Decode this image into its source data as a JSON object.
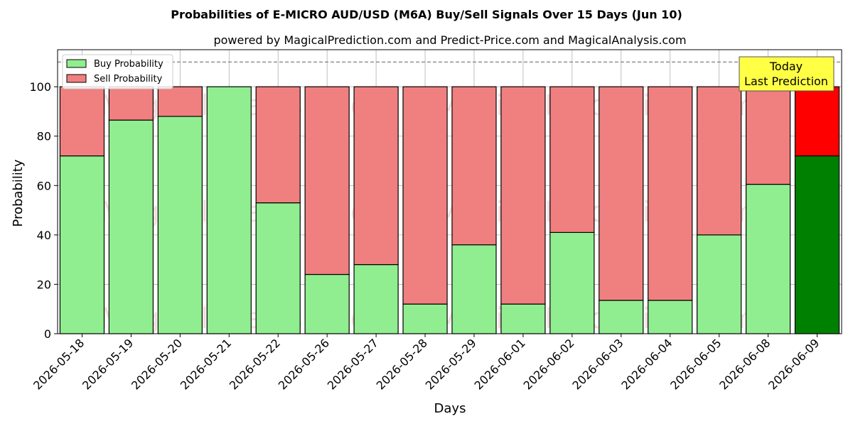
{
  "chart_data": {
    "type": "bar",
    "stacked": true,
    "title": "Probabilities of E-MICRO AUD/USD (M6A) Buy/Sell Signals Over 15 Days (Jun 10)",
    "subtitle": "powered by MagicalPrediction.com and Predict-Price.com and MagicalAnalysis.com",
    "xlabel": "Days",
    "ylabel": "Probability",
    "ylim": [
      0,
      115
    ],
    "yticks": [
      0,
      20,
      40,
      60,
      80,
      100
    ],
    "grid": true,
    "legend_placement": "top-left",
    "reference_line": {
      "y": 110,
      "style": "dashed",
      "color": "#808080"
    },
    "categories": [
      "2026-05-18",
      "2026-05-19",
      "2026-05-20",
      "2026-05-21",
      "2026-05-22",
      "2026-05-26",
      "2026-05-27",
      "2026-05-28",
      "2026-05-29",
      "2026-06-01",
      "2026-06-02",
      "2026-06-03",
      "2026-06-04",
      "2026-06-05",
      "2026-06-08",
      "2026-06-09"
    ],
    "series": [
      {
        "name": "Buy Probability",
        "color": "#90ee90",
        "values": [
          72,
          86.5,
          88,
          100,
          53,
          24,
          28,
          12,
          36,
          12,
          41,
          13.5,
          13.5,
          40,
          60.5,
          72
        ]
      },
      {
        "name": "Sell Probability",
        "color": "#f08080",
        "values": [
          28,
          13.5,
          12,
          0,
          47,
          76,
          72,
          88,
          64,
          88,
          59,
          86.5,
          86.5,
          60,
          39.5,
          28
        ]
      }
    ],
    "highlight": {
      "index": 15,
      "buy_color": "#008000",
      "sell_color": "#ff0000"
    },
    "annotation": {
      "lines": [
        "Today",
        "Last Prediction"
      ],
      "background": "#ffff44"
    },
    "watermarks": [
      "MagicalAnalysis.com",
      "MagicalPrediction.com"
    ]
  }
}
